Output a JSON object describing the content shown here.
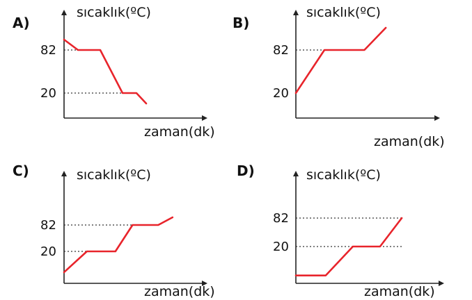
{
  "chart_data": [
    {
      "type": "line",
      "option": "A)",
      "ylabel": "sıcaklık(ºC)",
      "xlabel": "zaman(dk)",
      "yticks": [
        "82",
        "20"
      ],
      "series": [
        {
          "x": [
            0,
            1,
            2.6,
            4.2,
            5.2,
            5.9
          ],
          "y": [
            97,
            82,
            82,
            20,
            20,
            5
          ]
        }
      ],
      "color": "#e8242b"
    },
    {
      "type": "line",
      "option": "B)",
      "ylabel": "sıcaklık(ºC)",
      "xlabel": "zaman(dk)",
      "yticks": [
        "82",
        "20"
      ],
      "series": [
        {
          "x": [
            0,
            2.0,
            4.8,
            6.3
          ],
          "y": [
            20,
            82,
            82,
            114
          ]
        }
      ],
      "color": "#e8242b"
    },
    {
      "type": "line",
      "option": "C)",
      "ylabel": "sıcaklık(ºC)",
      "xlabel": "zaman(dk)",
      "yticks": [
        "82",
        "20"
      ],
      "series": [
        {
          "x": [
            0,
            1.6,
            3.6,
            4.8,
            6.6,
            7.6
          ],
          "y": [
            -29,
            20,
            20,
            82,
            82,
            100
          ]
        }
      ],
      "color": "#e8242b"
    },
    {
      "type": "line",
      "option": "D)",
      "ylabel": "sıcaklık(ºC)",
      "xlabel": "zaman(dk)",
      "yticks": [
        "82",
        "20"
      ],
      "series": [
        {
          "x": [
            0,
            2.2,
            4.2,
            6.2,
            7.8
          ],
          "y": [
            -43,
            -43,
            20,
            20,
            82
          ]
        }
      ],
      "color": "#e8242b"
    }
  ]
}
